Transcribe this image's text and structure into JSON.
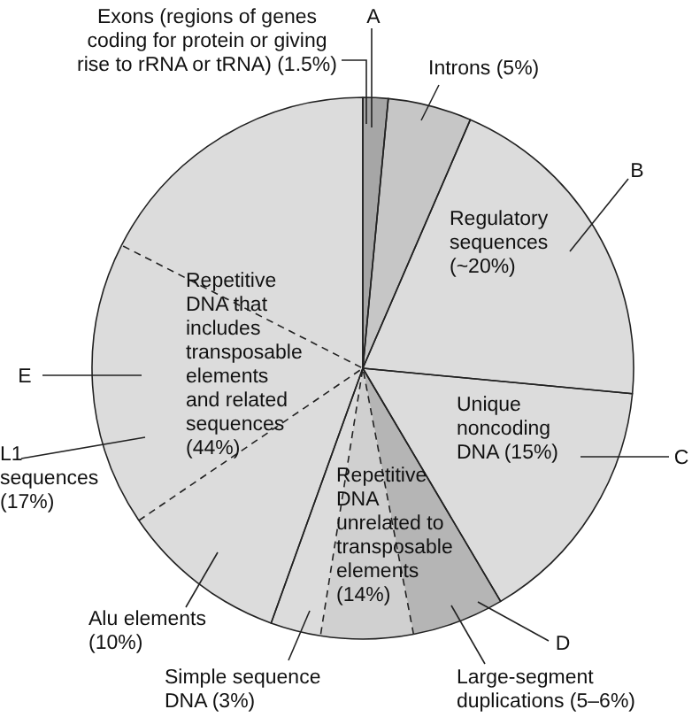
{
  "chart_data": {
    "type": "pie",
    "line_style": "dashed",
    "categories": [
      "Exons (regions of genes coding for protein or giving rise to rRNA or tRNA) (1.5%)",
      "Introns (5%)",
      "Regulatory sequences (~20%)",
      "Unique noncoding DNA (15%)",
      "Large-segment duplications (5–6%)",
      "Repetitive DNA unrelated to transposable elements (14%)",
      "Simple sequence DNA (3%)",
      "Alu elements (10%)",
      "L1 sequences (17%)",
      null
    ],
    "values": [
      1.5,
      5,
      20,
      15,
      5.5,
      5.5,
      3,
      10,
      17,
      17.5
    ],
    "colors": [
      "#a6a6a6",
      "#c6c6c6",
      "#dcdcdc",
      "#dcdcdc",
      "#b5b5b5",
      "#d0d0d0",
      "#dcdcdc",
      "#dcdcdc",
      "#dcdcdc",
      "#dcdcdc"
    ],
    "annotations": [
      "Repetitive DNA that includes transposable elements and related sequences (44%)",
      "A",
      "B",
      "C",
      "D",
      "E"
    ]
  }
}
